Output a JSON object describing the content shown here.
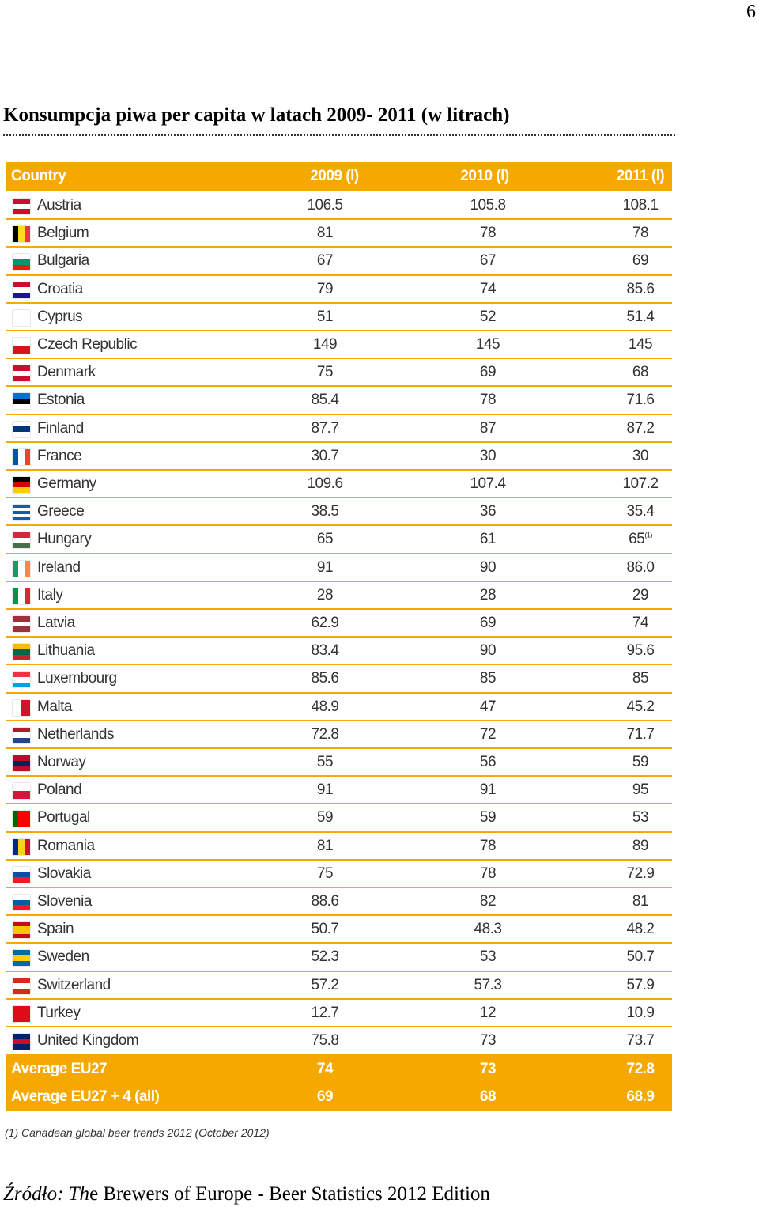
{
  "page_number": "6",
  "title": "Konsumpcja piwa per capita w latach 2009- 2011 (w litrach)",
  "table": {
    "header": [
      "Country",
      "2009 (l)",
      "2010 (l)",
      "2011 (l)"
    ],
    "rows": [
      [
        "Austria",
        "106.5",
        "105.8",
        "108.1"
      ],
      [
        "Belgium",
        "81",
        "78",
        "78"
      ],
      [
        "Bulgaria",
        "67",
        "67",
        "69"
      ],
      [
        "Croatia",
        "79",
        "74",
        "85.6"
      ],
      [
        "Cyprus",
        "51",
        "52",
        "51.4"
      ],
      [
        "Czech Republic",
        "149",
        "145",
        "145"
      ],
      [
        "Denmark",
        "75",
        "69",
        "68"
      ],
      [
        "Estonia",
        "85.4",
        "78",
        "71.6"
      ],
      [
        "Finland",
        "87.7",
        "87",
        "87.2"
      ],
      [
        "France",
        "30.7",
        "30",
        "30"
      ],
      [
        "Germany",
        "109.6",
        "107.4",
        "107.2"
      ],
      [
        "Greece",
        "38.5",
        "36",
        "35.4"
      ],
      [
        "Hungary",
        "65",
        "61",
        "65"
      ],
      [
        "Ireland",
        "91",
        "90",
        "86.0"
      ],
      [
        "Italy",
        "28",
        "28",
        "29"
      ],
      [
        "Latvia",
        "62.9",
        "69",
        "74"
      ],
      [
        "Lithuania",
        "83.4",
        "90",
        "95.6"
      ],
      [
        "Luxembourg",
        "85.6",
        "85",
        "85"
      ],
      [
        "Malta",
        "48.9",
        "47",
        "45.2"
      ],
      [
        "Netherlands",
        "72.8",
        "72",
        "71.7"
      ],
      [
        "Norway",
        "55",
        "56",
        "59"
      ],
      [
        "Poland",
        "91",
        "91",
        "95"
      ],
      [
        "Portugal",
        "59",
        "59",
        "53"
      ],
      [
        "Romania",
        "81",
        "78",
        "89"
      ],
      [
        "Slovakia",
        "75",
        "78",
        "72.9"
      ],
      [
        "Slovenia",
        "88.6",
        "82",
        "81"
      ],
      [
        "Spain",
        "50.7",
        "48.3",
        "48.2"
      ],
      [
        "Sweden",
        "52.3",
        "53",
        "50.7"
      ],
      [
        "Switzerland",
        "57.2",
        "57.3",
        "57.9"
      ],
      [
        "Turkey",
        "12.7",
        "12",
        "10.9"
      ],
      [
        "United Kingdom",
        "75.8",
        "73",
        "73.7"
      ]
    ],
    "hungary_2011_note": "(1)",
    "averages": [
      [
        "Average EU27",
        "74",
        "73",
        "72.8"
      ],
      [
        "Average EU27 + 4 (all)",
        "69",
        "68",
        "68.9"
      ]
    ],
    "footnote": "(1) Canadean global beer trends 2012 (October 2012)"
  },
  "source": {
    "italic": "Źródło: Th",
    "rest": "e Brewers of Europe - Beer Statistics 2012 Edition"
  }
}
